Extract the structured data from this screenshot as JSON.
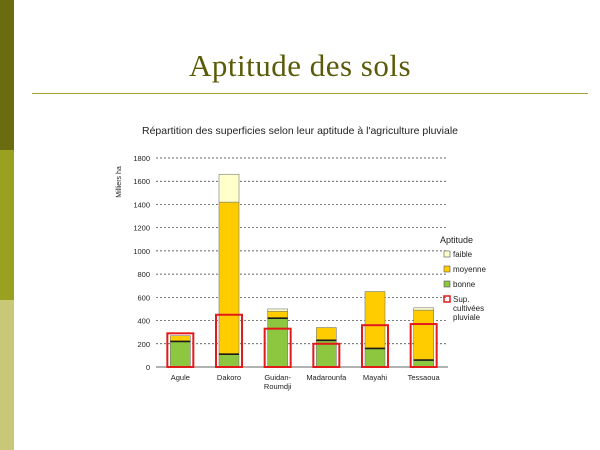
{
  "slide": {
    "title": "Aptitude des sols"
  },
  "colors": {
    "faible": "#ffffcc",
    "moyenne": "#ffcc00",
    "bonne": "#8dc63f",
    "cultivees": "#e31a1c",
    "sidebar_dark": "#6b6b10",
    "sidebar_mid": "#9aa020",
    "sidebar_light": "#c8c878",
    "title": "#5a5a08"
  },
  "chart_data": {
    "type": "bar",
    "stacked": true,
    "title": "Répartition des superficies selon leur aptitude à l'agriculture pluviale",
    "ylabel": "Milliers ha",
    "ylim": [
      0,
      1800
    ],
    "yticks": [
      {
        "value": 0,
        "label": "0"
      },
      {
        "value": 200,
        "label": "200"
      },
      {
        "value": 400,
        "label": "400"
      },
      {
        "value": 600,
        "label": "600"
      },
      {
        "value": 800,
        "label": "800"
      },
      {
        "value": 1000,
        "label": "1000"
      },
      {
        "value": 1200,
        "label": "1200"
      },
      {
        "value": 1400,
        "label": "1400"
      },
      {
        "value": 1600,
        "label": "1600"
      },
      {
        "value": 1800,
        "label": "1800"
      }
    ],
    "grid": true,
    "categories": [
      {
        "label": "Agule",
        "lines": [
          "Agule"
        ]
      },
      {
        "label": "Dakoro",
        "lines": [
          "Dakoro"
        ]
      },
      {
        "label": "Guidan-Roumdji",
        "lines": [
          "Guidan-",
          "Roumdji"
        ]
      },
      {
        "label": "Madarounfa",
        "lines": [
          "Madarounfa"
        ]
      },
      {
        "label": "Mayahi",
        "lines": [
          "Mayahi"
        ]
      },
      {
        "label": "Tessaoua",
        "lines": [
          "Tessaoua"
        ]
      }
    ],
    "series": [
      {
        "name": "bonne",
        "key": "bonne",
        "values": [
          220,
          110,
          420,
          230,
          160,
          60
        ]
      },
      {
        "name": "moyenne",
        "key": "moyenne",
        "values": [
          50,
          1310,
          60,
          110,
          490,
          430
        ]
      },
      {
        "name": "faible",
        "key": "faible",
        "values": [
          0,
          240,
          20,
          0,
          0,
          20
        ]
      }
    ],
    "overlay": {
      "name": "Sup. cultivées pluviale",
      "key": "cultivees",
      "values": [
        290,
        450,
        330,
        200,
        360,
        370
      ]
    },
    "legend": {
      "title": "Aptitude",
      "position": "right",
      "items": [
        {
          "key": "faible",
          "label": "faible"
        },
        {
          "key": "moyenne",
          "label": "moyenne"
        },
        {
          "key": "bonne",
          "label": "bonne"
        },
        {
          "key": "cultivees",
          "label": "Sup. cultivées pluviale",
          "lines": [
            "Sup.",
            "cultivées",
            "pluviale"
          ]
        }
      ]
    }
  }
}
